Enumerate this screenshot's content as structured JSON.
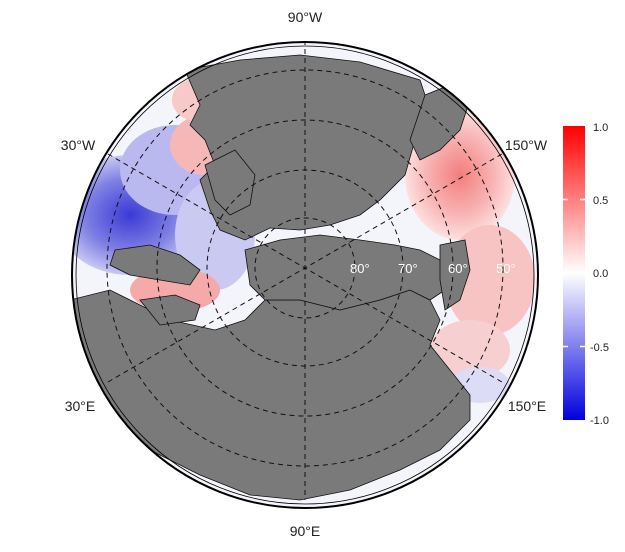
{
  "map": {
    "projection": "north-polar-stereographic",
    "land_color": "#7a7a7a",
    "outline_color": "#000000",
    "longitude_labels": {
      "top": "90°W",
      "bottom": "90°E",
      "upper_left": "30°W",
      "upper_right": "150°W",
      "lower_left": "30°E",
      "lower_right": "150°E"
    },
    "latitude_labels": [
      "80°",
      "70°",
      "60°",
      "50°"
    ]
  },
  "colorbar": {
    "min": -1.0,
    "max": 1.0,
    "colors": {
      "low": "#0000dd",
      "mid": "#ffffff",
      "high": "#ff0000"
    },
    "ticks": [
      "1.0",
      "0.5",
      "0.0",
      "-0.5",
      "-1.0"
    ]
  }
}
